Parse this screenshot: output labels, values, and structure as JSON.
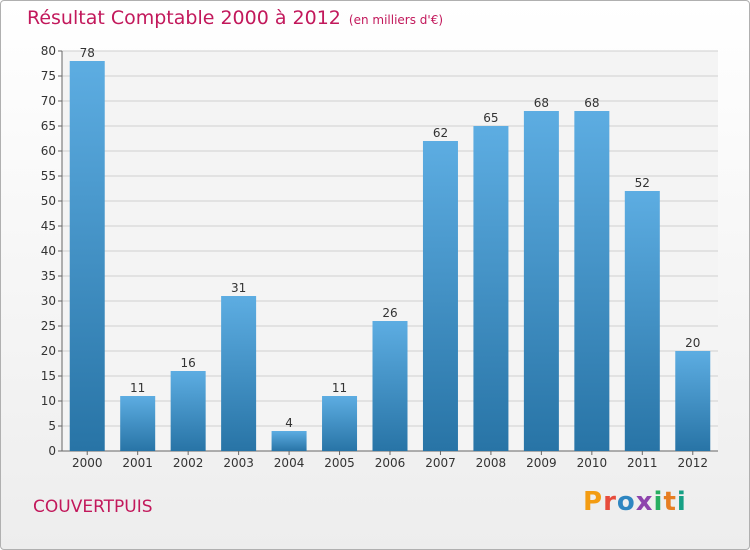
{
  "header": {
    "title": "Résultat Comptable 2000 à 2012",
    "subtitle": "(en milliers d'€)"
  },
  "footer": {
    "commune": "COUVERTPUIS",
    "logo_text": "Proxiti",
    "logo_colors": [
      "#f39c12",
      "#e74c3c",
      "#2e86c1",
      "#8e44ad",
      "#27ae60",
      "#e67e22",
      "#16a085"
    ]
  },
  "colors": {
    "bar_light": "#5dade2",
    "bar_dark": "#2874a6",
    "accent": "#c2185b",
    "grid": "#cfcfcf"
  },
  "chart_data": {
    "type": "bar",
    "categories": [
      "2000",
      "2001",
      "2002",
      "2003",
      "2004",
      "2005",
      "2006",
      "2007",
      "2008",
      "2009",
      "2010",
      "2011",
      "2012"
    ],
    "values": [
      78,
      11,
      16,
      31,
      4,
      11,
      26,
      62,
      65,
      68,
      68,
      52,
      20
    ],
    "ylim": [
      0,
      80
    ],
    "yticks": [
      0,
      5,
      10,
      15,
      20,
      25,
      30,
      35,
      40,
      45,
      50,
      55,
      60,
      65,
      70,
      75,
      80
    ],
    "grid": true,
    "data_labels": true
  }
}
